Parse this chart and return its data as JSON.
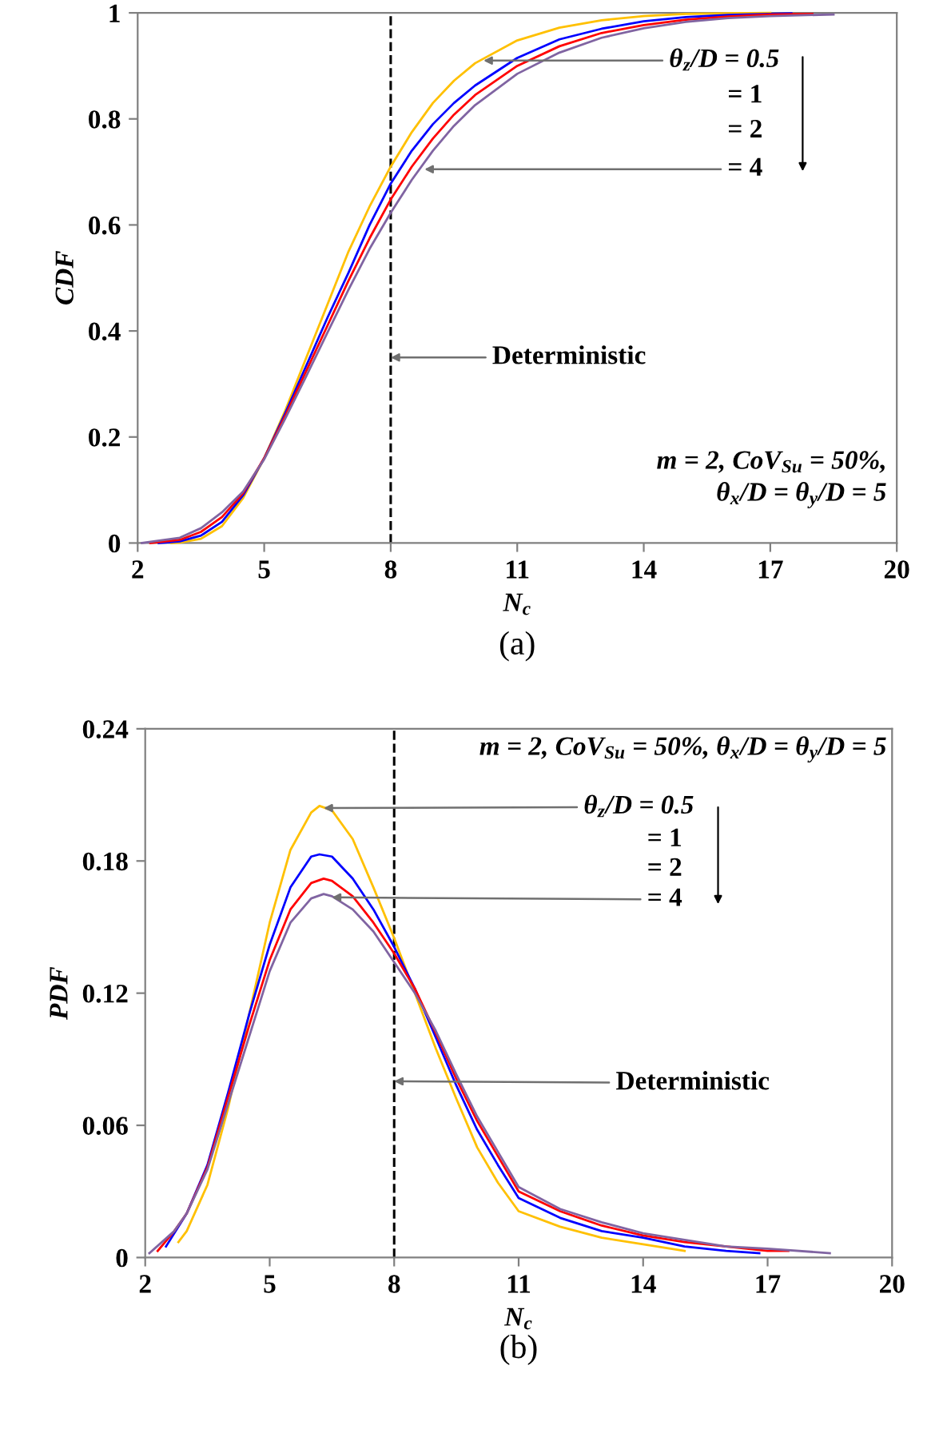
{
  "chart_data": [
    {
      "type": "line",
      "title": "(a)",
      "xlabel": "N$_{c}$",
      "ylabel": "CDF",
      "xlim": [
        2,
        20
      ],
      "xticks": [
        2,
        5,
        8,
        11,
        14,
        17,
        20
      ],
      "ylim": [
        0,
        1
      ],
      "yticks": [
        0,
        0.2,
        0.4,
        0.6,
        0.8,
        1
      ],
      "grid": false,
      "ref_lines": [
        {
          "axis": "x",
          "value": 8,
          "color": "#000000",
          "line_style": "dashed"
        }
      ],
      "annotations": [
        {
          "text": "θ$_{z}$/D = 0.5",
          "x": 10.2,
          "y": 0.91
        },
        "= 1",
        "= 2",
        {
          "text": "= 4",
          "x": 8.8,
          "y": 0.705
        },
        {
          "text": "Deterministic",
          "x": 8,
          "y": 0.35
        },
        "m = 2, CoV$_{Su}$ = 50%,\nθ$_{x}$/D = θ$_{y}$/D = 5"
      ],
      "series": [
        {
          "color": "#ffc000",
          "x": [
            2.8,
            3,
            3.5,
            4,
            4.5,
            5,
            5.5,
            6,
            6.5,
            7,
            7.5,
            8,
            8.5,
            9,
            9.5,
            10,
            11,
            12,
            13,
            14,
            15,
            16,
            17
          ],
          "values": [
            0,
            0.001,
            0.008,
            0.032,
            0.085,
            0.16,
            0.25,
            0.35,
            0.45,
            0.55,
            0.635,
            0.71,
            0.775,
            0.83,
            0.872,
            0.905,
            0.948,
            0.972,
            0.986,
            0.994,
            0.998,
            0.999,
            1
          ]
        },
        {
          "color": "#0000ff",
          "x": [
            2.5,
            3,
            3.5,
            4,
            4.5,
            5,
            5.5,
            6,
            6.5,
            7,
            7.5,
            8,
            8.5,
            9,
            9.5,
            10,
            11,
            12,
            13,
            14,
            15,
            16,
            17,
            17.5
          ],
          "values": [
            0,
            0.003,
            0.014,
            0.04,
            0.09,
            0.16,
            0.245,
            0.335,
            0.425,
            0.51,
            0.6,
            0.678,
            0.74,
            0.79,
            0.83,
            0.863,
            0.915,
            0.95,
            0.97,
            0.984,
            0.992,
            0.996,
            0.998,
            0.999
          ]
        },
        {
          "color": "#ff0000",
          "x": [
            2.3,
            3,
            3.5,
            4,
            4.5,
            5,
            5.5,
            6,
            6.5,
            7,
            7.5,
            8,
            8.5,
            9,
            9.5,
            10,
            11,
            12,
            13,
            14,
            15,
            16,
            17,
            18
          ],
          "values": [
            0,
            0.006,
            0.021,
            0.049,
            0.094,
            0.16,
            0.24,
            0.325,
            0.41,
            0.495,
            0.575,
            0.648,
            0.71,
            0.763,
            0.808,
            0.845,
            0.9,
            0.937,
            0.962,
            0.977,
            0.987,
            0.993,
            0.997,
            0.998
          ]
        },
        {
          "color": "#8064a2",
          "x": [
            2.1,
            3,
            3.5,
            4,
            4.5,
            5,
            5.5,
            6,
            6.5,
            7,
            7.5,
            8,
            8.5,
            9,
            9.5,
            10,
            11,
            12,
            13,
            14,
            15,
            16,
            17,
            18.5
          ],
          "values": [
            0,
            0.01,
            0.028,
            0.058,
            0.097,
            0.158,
            0.235,
            0.315,
            0.397,
            0.478,
            0.555,
            0.623,
            0.685,
            0.74,
            0.787,
            0.826,
            0.885,
            0.925,
            0.953,
            0.971,
            0.983,
            0.99,
            0.994,
            0.997
          ]
        }
      ]
    },
    {
      "type": "line",
      "title": "(b)",
      "xlabel": "N$_{c}$",
      "ylabel": "PDF",
      "xlim": [
        2,
        20
      ],
      "xticks": [
        2,
        5,
        8,
        11,
        14,
        17,
        20
      ],
      "ylim": [
        0,
        0.24
      ],
      "yticks": [
        0,
        0.06,
        0.12,
        0.18,
        0.24
      ],
      "grid": false,
      "ref_lines": [
        {
          "axis": "x",
          "value": 8,
          "color": "#000000",
          "line_style": "dashed"
        }
      ],
      "annotations": [
        "m = 2, CoV$_{Su}$ = 50%, θ$_{x}$/D = θ$_{y}$/D = 5",
        {
          "text": "θ$_{z}$/D = 0.5",
          "x": 6.3,
          "y": 0.204
        },
        "= 1",
        "= 2",
        {
          "text": "= 4",
          "x": 6.5,
          "y": 0.1635
        },
        {
          "text": "Deterministic",
          "x": 8,
          "y": 0.08
        }
      ],
      "series": [
        {
          "color": "#ffc000",
          "x": [
            2.8,
            3,
            3.5,
            4,
            4.5,
            5,
            5.5,
            6,
            6.2,
            6.5,
            7,
            7.5,
            8,
            8.5,
            9,
            9.5,
            10,
            10.5,
            11,
            12,
            13,
            14,
            15
          ],
          "values": [
            0.007,
            0.012,
            0.033,
            0.068,
            0.11,
            0.152,
            0.185,
            0.202,
            0.205,
            0.203,
            0.19,
            0.168,
            0.145,
            0.12,
            0.095,
            0.072,
            0.05,
            0.034,
            0.021,
            0.014,
            0.009,
            0.006,
            0.003
          ]
        },
        {
          "color": "#0000ff",
          "x": [
            2.5,
            2.7,
            3,
            3.5,
            4,
            4.5,
            5,
            5.5,
            6,
            6.2,
            6.5,
            7,
            7.5,
            8,
            8.5,
            9,
            9.5,
            10,
            10.5,
            11,
            12,
            13,
            14,
            15,
            16,
            16.8
          ],
          "values": [
            0.005,
            0.011,
            0.02,
            0.042,
            0.075,
            0.11,
            0.142,
            0.168,
            0.182,
            0.183,
            0.182,
            0.172,
            0.158,
            0.141,
            0.122,
            0.1,
            0.078,
            0.058,
            0.042,
            0.027,
            0.018,
            0.012,
            0.009,
            0.005,
            0.003,
            0.002
          ]
        },
        {
          "color": "#ff0000",
          "x": [
            2.3,
            2.7,
            3,
            3.5,
            4,
            4.5,
            5,
            5.5,
            6,
            6.3,
            6.5,
            7,
            7.5,
            8,
            8.5,
            9,
            9.5,
            10,
            10.5,
            11,
            12,
            13,
            14,
            15,
            16,
            17,
            17.5
          ],
          "values": [
            0.003,
            0.012,
            0.02,
            0.041,
            0.073,
            0.105,
            0.135,
            0.158,
            0.17,
            0.172,
            0.171,
            0.164,
            0.152,
            0.138,
            0.122,
            0.102,
            0.081,
            0.062,
            0.046,
            0.03,
            0.021,
            0.0145,
            0.01,
            0.007,
            0.005,
            0.003,
            0.003
          ]
        },
        {
          "color": "#8064a2",
          "x": [
            2.1,
            2.7,
            3,
            3.5,
            4,
            4.5,
            5,
            5.5,
            6,
            6.3,
            6.5,
            7,
            7.5,
            8,
            8.5,
            9,
            9.5,
            10,
            10.5,
            11,
            12,
            13,
            14,
            15,
            16,
            17,
            18.5
          ],
          "values": [
            0.002,
            0.012,
            0.02,
            0.04,
            0.07,
            0.1,
            0.13,
            0.152,
            0.163,
            0.165,
            0.164,
            0.158,
            0.148,
            0.134,
            0.12,
            0.103,
            0.083,
            0.064,
            0.048,
            0.032,
            0.022,
            0.016,
            0.011,
            0.008,
            0.005,
            0.004,
            0.002
          ]
        }
      ]
    }
  ]
}
